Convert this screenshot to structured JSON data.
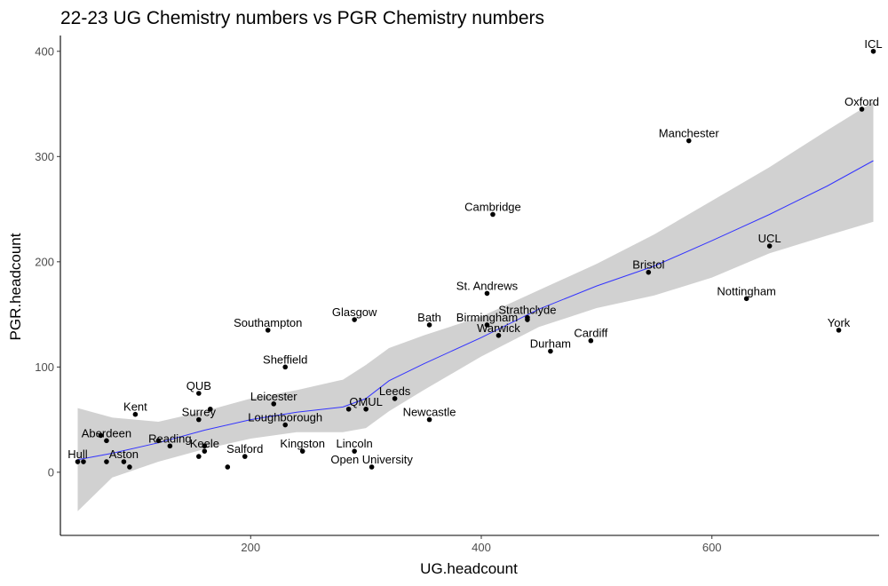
{
  "chart_data": {
    "type": "scatter",
    "title": "22-23 UG Chemistry numbers vs PGR Chemistry numbers",
    "xlabel": "UG.headcount",
    "ylabel": "PGR.headcount",
    "xlim": [
      35,
      745
    ],
    "ylim": [
      -60,
      415
    ],
    "xticks": [
      200,
      400,
      600
    ],
    "yticks": [
      0,
      100,
      200,
      300,
      400
    ],
    "colors": {
      "point": "#000000",
      "smooth_line": "#3333ff",
      "ribbon": "#bdbdbd"
    },
    "points": [
      {
        "name": "ICL",
        "x": 740,
        "y": 400
      },
      {
        "name": "Oxford",
        "x": 730,
        "y": 345
      },
      {
        "name": "Manchester",
        "x": 580,
        "y": 315
      },
      {
        "name": "Cambridge",
        "x": 410,
        "y": 245
      },
      {
        "name": "UCL",
        "x": 650,
        "y": 215
      },
      {
        "name": "Bristol",
        "x": 545,
        "y": 190
      },
      {
        "name": "St. Andrews",
        "x": 405,
        "y": 170
      },
      {
        "name": "Nottingham",
        "x": 630,
        "y": 165
      },
      {
        "name": "Glasgow",
        "x": 290,
        "y": 145
      },
      {
        "name": "Strathclyde",
        "x": 440,
        "y": 147
      },
      {
        "name": "Bath",
        "x": 355,
        "y": 140
      },
      {
        "name": "Birmingham",
        "x": 405,
        "y": 140
      },
      {
        "name": "Southampton",
        "x": 215,
        "y": 135
      },
      {
        "name": "York",
        "x": 710,
        "y": 135
      },
      {
        "name": "Warwick",
        "x": 415,
        "y": 130
      },
      {
        "name": "Cardiff",
        "x": 495,
        "y": 125
      },
      {
        "name": "Durham",
        "x": 460,
        "y": 115
      },
      {
        "name": "Sheffield",
        "x": 230,
        "y": 100
      },
      {
        "name": "QUB",
        "x": 155,
        "y": 75
      },
      {
        "name": "Leeds",
        "x": 325,
        "y": 70
      },
      {
        "name": "Leicester",
        "x": 220,
        "y": 65
      },
      {
        "name": "QMUL",
        "x": 300,
        "y": 60
      },
      {
        "name": "Kent",
        "x": 100,
        "y": 55
      },
      {
        "name": "Surrey",
        "x": 155,
        "y": 50
      },
      {
        "name": "Newcastle",
        "x": 355,
        "y": 50
      },
      {
        "name": "Loughborough",
        "x": 230,
        "y": 45
      },
      {
        "name": "Aberdeen",
        "x": 75,
        "y": 30
      },
      {
        "name": "Reading",
        "x": 130,
        "y": 25
      },
      {
        "name": "Keele",
        "x": 160,
        "y": 20
      },
      {
        "name": "Kingston",
        "x": 245,
        "y": 20
      },
      {
        "name": "Lincoln",
        "x": 290,
        "y": 20
      },
      {
        "name": "Salford",
        "x": 195,
        "y": 15
      },
      {
        "name": "Hull",
        "x": 50,
        "y": 10
      },
      {
        "name": "Aston",
        "x": 90,
        "y": 10
      },
      {
        "name": "Open University",
        "x": 305,
        "y": 5
      }
    ],
    "unlabeled_points": [
      {
        "x": 55,
        "y": 10
      },
      {
        "x": 70,
        "y": 35
      },
      {
        "x": 75,
        "y": 10
      },
      {
        "x": 95,
        "y": 5
      },
      {
        "x": 120,
        "y": 30
      },
      {
        "x": 155,
        "y": 15
      },
      {
        "x": 160,
        "y": 25
      },
      {
        "x": 165,
        "y": 60
      },
      {
        "x": 180,
        "y": 5
      },
      {
        "x": 285,
        "y": 60
      },
      {
        "x": 440,
        "y": 145
      }
    ],
    "smooth_fit": {
      "method": "loess",
      "points": [
        {
          "x": 50,
          "y": 12,
          "lo": -37,
          "hi": 61
        },
        {
          "x": 80,
          "y": 18,
          "lo": -5,
          "hi": 52
        },
        {
          "x": 120,
          "y": 28,
          "lo": 10,
          "hi": 48
        },
        {
          "x": 160,
          "y": 40,
          "lo": 22,
          "hi": 58
        },
        {
          "x": 200,
          "y": 50,
          "lo": 32,
          "hi": 70
        },
        {
          "x": 240,
          "y": 57,
          "lo": 38,
          "hi": 78
        },
        {
          "x": 280,
          "y": 62,
          "lo": 38,
          "hi": 88
        },
        {
          "x": 300,
          "y": 70,
          "lo": 42,
          "hi": 102
        },
        {
          "x": 320,
          "y": 87,
          "lo": 58,
          "hi": 118
        },
        {
          "x": 350,
          "y": 103,
          "lo": 78,
          "hi": 130
        },
        {
          "x": 400,
          "y": 128,
          "lo": 110,
          "hi": 148
        },
        {
          "x": 450,
          "y": 155,
          "lo": 138,
          "hi": 173
        },
        {
          "x": 500,
          "y": 177,
          "lo": 156,
          "hi": 198
        },
        {
          "x": 550,
          "y": 196,
          "lo": 168,
          "hi": 226
        },
        {
          "x": 600,
          "y": 220,
          "lo": 185,
          "hi": 258
        },
        {
          "x": 650,
          "y": 245,
          "lo": 208,
          "hi": 290
        },
        {
          "x": 700,
          "y": 272,
          "lo": 225,
          "hi": 325
        },
        {
          "x": 740,
          "y": 296,
          "lo": 238,
          "hi": 352
        }
      ]
    }
  }
}
